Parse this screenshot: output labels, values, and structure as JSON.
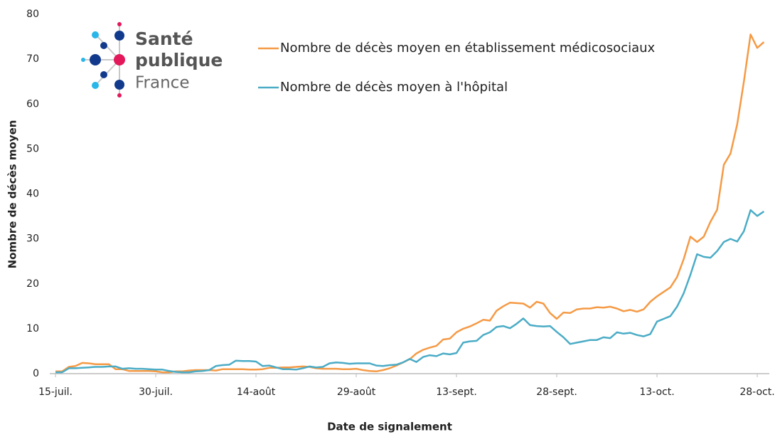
{
  "logo": {
    "lines": [
      "Santé",
      "publique",
      "France"
    ]
  },
  "chart_data": {
    "type": "line",
    "x_label": "Date de signalement",
    "y_label": "Nombre de décès moyen",
    "categories": [
      "15-juil.",
      null,
      null,
      null,
      null,
      null,
      null,
      null,
      null,
      null,
      null,
      null,
      null,
      null,
      null,
      "30-juil.",
      null,
      null,
      null,
      null,
      null,
      null,
      null,
      null,
      null,
      null,
      null,
      null,
      null,
      null,
      "14-août",
      null,
      null,
      null,
      null,
      null,
      null,
      null,
      null,
      null,
      null,
      null,
      null,
      null,
      null,
      "29-août",
      null,
      null,
      null,
      null,
      null,
      null,
      null,
      null,
      null,
      null,
      null,
      null,
      null,
      null,
      "13-sept.",
      null,
      null,
      null,
      null,
      null,
      null,
      null,
      null,
      null,
      null,
      null,
      null,
      null,
      null,
      "28-sept.",
      null,
      null,
      null,
      null,
      null,
      null,
      null,
      null,
      null,
      null,
      null,
      null,
      null,
      null,
      "13-oct.",
      null,
      null,
      null,
      null,
      null,
      null,
      null,
      null,
      null,
      null,
      null,
      null,
      null,
      null,
      "28-oct.",
      null
    ],
    "series": [
      {
        "name": "Nombre de décès moyen en établissement médicosociaux",
        "color": "#f59a45",
        "values": [
          0.5,
          0.5,
          1.5,
          1.7,
          2.4,
          2.3,
          2.1,
          2.1,
          2.1,
          1,
          1,
          0.6,
          0.6,
          0.6,
          0.6,
          0.5,
          0.3,
          0.3,
          0.5,
          0.5,
          0.7,
          0.8,
          0.8,
          0.8,
          0.7,
          1,
          1,
          1,
          1,
          0.9,
          0.9,
          1,
          1.3,
          1.3,
          1.4,
          1.4,
          1.5,
          1.6,
          1.5,
          1.2,
          1.1,
          1.1,
          1.1,
          1,
          1,
          1.1,
          0.8,
          0.6,
          0.5,
          0.8,
          1.2,
          1.8,
          2.5,
          3.2,
          4.5,
          5.3,
          5.8,
          6.2,
          7.6,
          7.8,
          9.2,
          10,
          10.5,
          11.2,
          12,
          11.8,
          14,
          15,
          15.8,
          15.7,
          15.6,
          14.7,
          16,
          15.6,
          13.5,
          12.2,
          13.6,
          13.5,
          14.3,
          14.5,
          14.5,
          14.8,
          14.7,
          14.9,
          14.5,
          13.9,
          14.2,
          13.8,
          14.3,
          16,
          17.2,
          18.2,
          19.2,
          21.5,
          25.5,
          30.5,
          29.3,
          30.5,
          33.8,
          36.5,
          46.5,
          49,
          55.5,
          65,
          75.5,
          72.5,
          73.8
        ]
      },
      {
        "name": "Nombre de décès moyen à l'hôpital",
        "color": "#4bacc6",
        "values": [
          0.3,
          0.3,
          1.2,
          1.2,
          1.3,
          1.4,
          1.5,
          1.5,
          1.6,
          1.6,
          1.1,
          1.2,
          1.1,
          1.1,
          1,
          0.9,
          0.9,
          0.6,
          0.4,
          0.3,
          0.3,
          0.5,
          0.6,
          0.8,
          1.7,
          1.9,
          2,
          2.9,
          2.8,
          2.8,
          2.7,
          1.7,
          1.8,
          1.4,
          1,
          1,
          0.9,
          1.2,
          1.6,
          1.4,
          1.5,
          2.3,
          2.5,
          2.4,
          2.2,
          2.3,
          2.3,
          2.3,
          1.8,
          1.7,
          1.9,
          2,
          2.5,
          3.3,
          2.6,
          3.7,
          4.1,
          3.9,
          4.5,
          4.3,
          4.6,
          6.9,
          7.2,
          7.3,
          8.6,
          9.2,
          10.4,
          10.6,
          10.1,
          11.1,
          12.3,
          10.8,
          10.6,
          10.5,
          10.6,
          9.3,
          8.1,
          6.6,
          6.9,
          7.2,
          7.5,
          7.5,
          8.1,
          7.9,
          9.2,
          8.9,
          9.1,
          8.6,
          8.3,
          8.8,
          11.6,
          12.2,
          12.8,
          14.9,
          17.9,
          22,
          26.6,
          26,
          25.8,
          27.3,
          29.3,
          30,
          29.4,
          31.7,
          36.4,
          35.1,
          36.1
        ]
      }
    ],
    "ylim": [
      0,
      80
    ],
    "yticks": [
      0,
      10,
      20,
      30,
      40,
      50,
      60,
      70,
      80
    ],
    "grid": false
  }
}
